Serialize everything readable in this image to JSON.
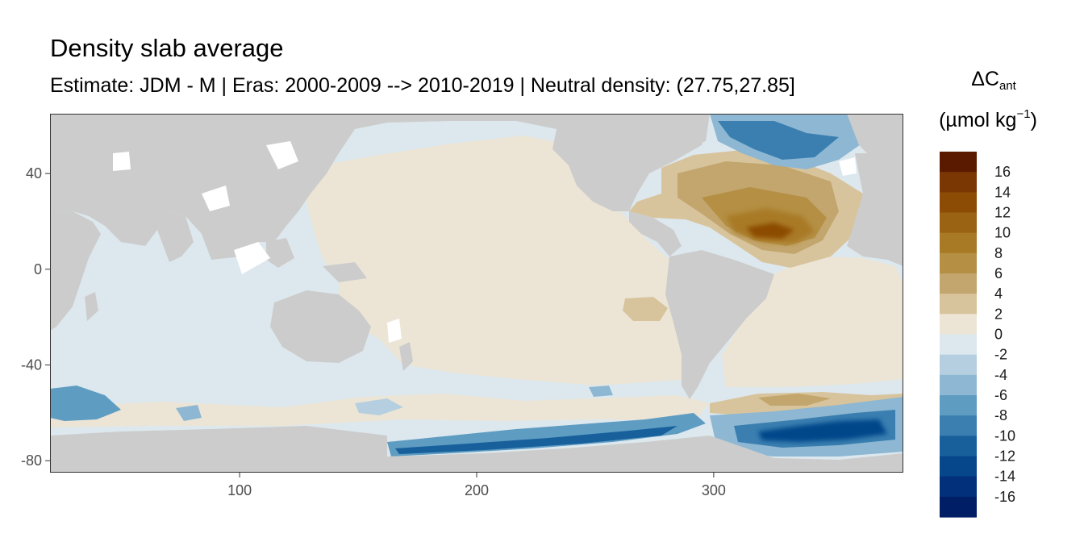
{
  "chart_data": {
    "type": "heatmap",
    "title": "Density slab average",
    "subtitle": "Estimate: JDM - M | Eras: 2000-2009 --> 2010-2019 | Neutral density: (27.75,27.85]",
    "legend": {
      "title_main": "ΔC",
      "title_sub": "ant",
      "unit_main": "(µmol kg",
      "unit_sup": "−1",
      "unit_close": ")",
      "position": "right",
      "levels": [
        18,
        16,
        14,
        12,
        10,
        8,
        6,
        4,
        2,
        0,
        -2,
        -4,
        -6,
        -8,
        -10,
        -12,
        -14,
        -16,
        -18
      ],
      "labels": [
        "16",
        "14",
        "12",
        "10",
        "8",
        "6",
        "4",
        "2",
        "0",
        "-2",
        "-4",
        "-6",
        "-8",
        "-10",
        "-12",
        "-14",
        "-16"
      ],
      "colors": [
        "#5a1a00",
        "#7b3703",
        "#8c4c06",
        "#9a6213",
        "#a97a25",
        "#b48f44",
        "#c3a66d",
        "#d8c49c",
        "#ece5d6",
        "#dde8ee",
        "#b5cfe0",
        "#8db7d2",
        "#5e9cc2",
        "#3a7fb0",
        "#18609c",
        "#06468a",
        "#02307a",
        "#001e66"
      ]
    },
    "x_axis": {
      "range": [
        20,
        380
      ],
      "ticks": [
        100,
        200,
        300
      ],
      "tick_labels": [
        "100",
        "200",
        "300"
      ]
    },
    "y_axis": {
      "range": [
        -85,
        65
      ],
      "ticks": [
        40,
        0,
        -40,
        -80
      ],
      "tick_labels": [
        "40",
        "0",
        "-40",
        "-80"
      ]
    },
    "land_color": "#cccccc",
    "grid": false,
    "dominant_values": {
      "indian_and_west_pacific": -1,
      "central_east_pacific": 1,
      "north_atlantic_subtropical_gyre": 14,
      "south_atlantic": 1,
      "southern_ocean_band": -2,
      "ross_sea_shelf": -12,
      "weddell_sea": -12,
      "nordic_seas": -8
    }
  }
}
